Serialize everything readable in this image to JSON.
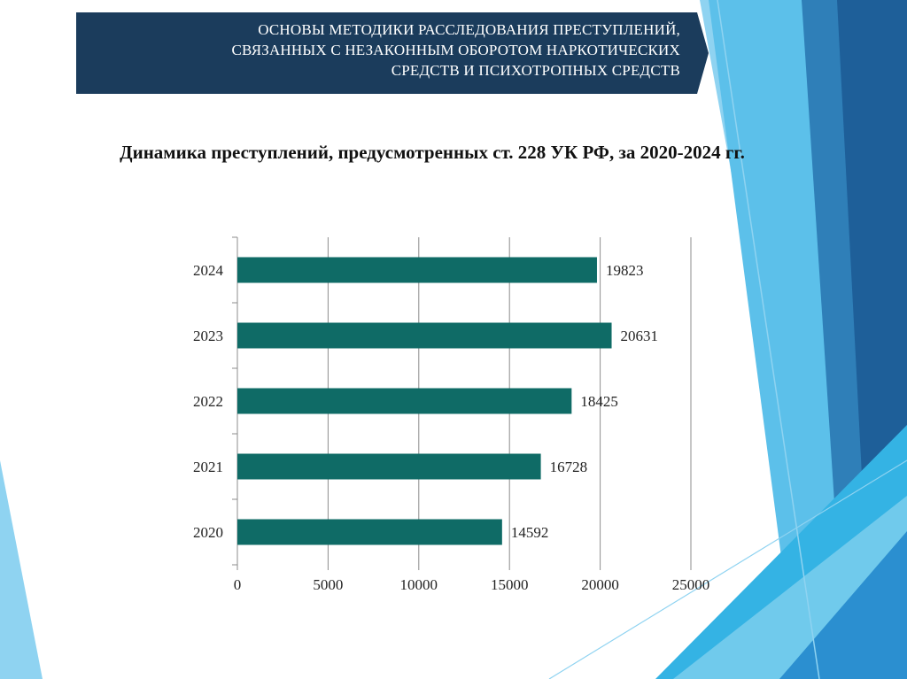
{
  "header": {
    "title_lines": [
      "ОСНОВЫ МЕТОДИКИ РАССЛЕДОВАНИЯ ПРЕСТУПЛЕНИЙ,",
      "СВЯЗАННЫХ С НЕЗАКОННЫМ ОБОРОТОМ НАРКОТИЧЕСКИХ",
      "СРЕДСТВ И ПСИХОТРОПНЫХ СРЕДСТВ"
    ]
  },
  "colors": {
    "banner": "#1b3c5c",
    "bar": "#0f6b66",
    "accent_light": "#8fd3f1",
    "accent_mid": "#2f8fc9",
    "accent_dark": "#1e5f99",
    "accent_cyan": "#34b3e4"
  },
  "chart_data": {
    "type": "bar",
    "orientation": "horizontal",
    "title": "Динамика преступлений, предусмотренных ст. 228 УК РФ, за 2020-2024 гг.",
    "categories": [
      "2020",
      "2021",
      "2022",
      "2023",
      "2024"
    ],
    "values": [
      14592,
      16728,
      18425,
      20631,
      19823
    ],
    "data_labels": [
      "14592",
      "16728",
      "18425",
      "20631",
      "19823"
    ],
    "xlim": [
      0,
      25000
    ],
    "x_ticks": [
      "0",
      "5000",
      "10000",
      "15000",
      "20000",
      "25000"
    ],
    "xlabel": "",
    "ylabel": "",
    "grid": "vertical",
    "legend": "none"
  }
}
